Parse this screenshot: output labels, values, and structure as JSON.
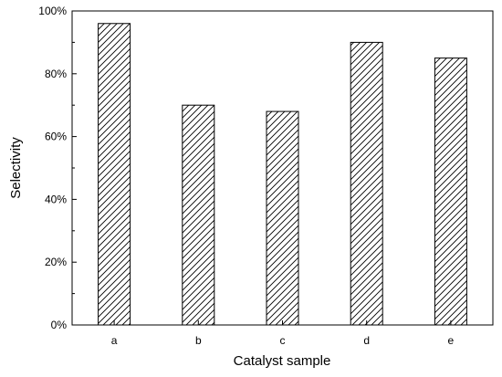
{
  "chart_data": {
    "type": "bar",
    "title": "",
    "xlabel": "Catalyst sample",
    "ylabel": "Selectivity",
    "categories": [
      "a",
      "b",
      "c",
      "d",
      "e"
    ],
    "values": [
      96,
      70,
      68,
      90,
      85
    ],
    "unit": "%",
    "ylim": [
      0,
      100
    ],
    "yticks": [
      0,
      20,
      40,
      60,
      80,
      100
    ],
    "ytick_labels": [
      "0%",
      "20%",
      "40%",
      "60%",
      "80%",
      "100%"
    ],
    "bar_fill": "diagonal-hatch",
    "grid": false,
    "legend": "none",
    "colors": {
      "bar_stroke": "#000000",
      "hatch": "#000000",
      "background": "#ffffff"
    }
  }
}
